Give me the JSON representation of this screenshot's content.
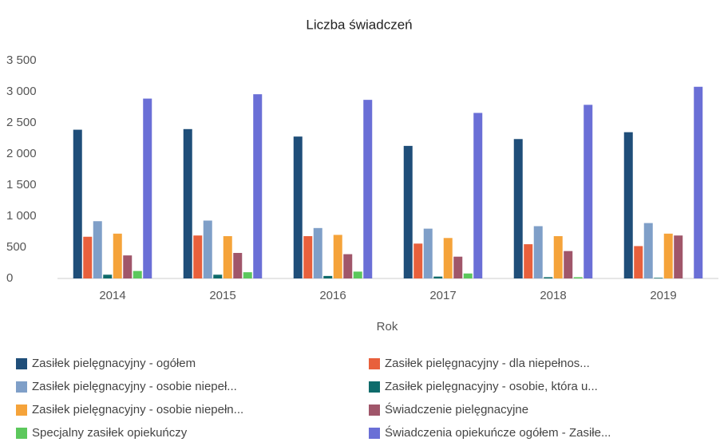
{
  "chart_data": {
    "type": "bar",
    "title": "Liczba świadczeń",
    "x_label": "Rok",
    "categories": [
      "2014",
      "2015",
      "2016",
      "2017",
      "2018",
      "2019"
    ],
    "series": [
      {
        "name": "Zasiłek pielęgnacyjny - ogółem",
        "color": "#1f4e79",
        "values": [
          2390,
          2400,
          2280,
          2130,
          2240,
          2350
        ]
      },
      {
        "name": "Zasiłek pielęgnacyjny - dla niepełnos...",
        "color": "#e8603c",
        "values": [
          670,
          690,
          680,
          560,
          550,
          520
        ]
      },
      {
        "name": "Zasiłek pielęgnacyjny - osobie niepeł...",
        "color": "#7f9fc8",
        "values": [
          920,
          930,
          810,
          800,
          840,
          890
        ]
      },
      {
        "name": "Zasiłek pielęgnacyjny - osobie, która u...",
        "color": "#0e6b6b",
        "values": [
          60,
          60,
          40,
          30,
          20,
          10
        ]
      },
      {
        "name": "Zasiłek pielęgnacyjny -  osobie niepełn...",
        "color": "#f5a33a",
        "values": [
          720,
          680,
          700,
          650,
          680,
          720
        ]
      },
      {
        "name": "Świadczenie pielęgnacyjne",
        "color": "#a0566a",
        "values": [
          370,
          410,
          390,
          350,
          440,
          690
        ]
      },
      {
        "name": "Specjalny zasiłek opiekuńczy",
        "color": "#5cc85c",
        "values": [
          120,
          100,
          110,
          80,
          20,
          0
        ]
      },
      {
        "name": "Świadczenia opiekuńcze ogółem - Zasiłe...",
        "color": "#6a6fd6",
        "values": [
          2890,
          2960,
          2870,
          2660,
          2790,
          3080
        ]
      }
    ],
    "ylim": [
      0,
      3500
    ],
    "yticks": [
      0,
      500,
      {
        "value": 1000,
        "label": "1 000"
      },
      {
        "value": 1500,
        "label": "1 500"
      },
      {
        "value": 2000,
        "label": "2 000"
      },
      {
        "value": 2500,
        "label": "2 500"
      },
      {
        "value": 3000,
        "label": "3 000"
      },
      {
        "value": 3500,
        "label": "3 500"
      }
    ],
    "grid": false
  }
}
